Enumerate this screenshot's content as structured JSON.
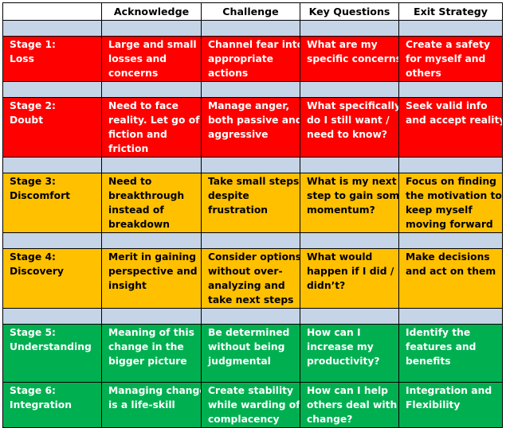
{
  "headers": [
    "",
    "Acknowledge",
    "Challenge",
    "Key Questions",
    "Exit Strategy"
  ],
  "colors": {
    "red": "#fe0000",
    "yellow": "#ffc000",
    "green": "#00b050",
    "spacer": "#c5d4e6"
  },
  "rows": [
    {
      "stage": [
        "Stage 1:",
        "Loss"
      ],
      "acknowledge": [
        "Large and small",
        "losses and",
        "concerns"
      ],
      "challenge": [
        "Channel fear into",
        "appropriate",
        "actions"
      ],
      "key_questions": [
        "What are my",
        "specific concerns?"
      ],
      "exit_strategy": [
        "Create a safety",
        "for myself and",
        "others"
      ]
    },
    {
      "stage": [
        "Stage 2:",
        "Doubt"
      ],
      "acknowledge": [
        "Need to face",
        "reality. Let go of",
        "fiction and",
        "friction"
      ],
      "challenge": [
        "Manage anger,",
        "both passive and",
        "aggressive"
      ],
      "key_questions": [
        "What specifically",
        "do I still want /",
        "need to know?"
      ],
      "exit_strategy": [
        "Seek valid info",
        "and accept reality"
      ]
    },
    {
      "stage": [
        "Stage 3:",
        "Discomfort"
      ],
      "acknowledge": [
        "Need to",
        "breakthrough",
        "instead of",
        "breakdown"
      ],
      "challenge": [
        "Take small steps",
        "despite",
        "frustration"
      ],
      "key_questions": [
        "What is my next",
        "step to gain some",
        "momentum?"
      ],
      "exit_strategy": [
        "Focus on finding",
        "the motivation to",
        "keep myself",
        "moving forward"
      ]
    },
    {
      "stage": [
        "Stage 4:",
        "Discovery"
      ],
      "acknowledge": [
        "Merit in gaining",
        "perspective and",
        "insight"
      ],
      "challenge": [
        "Consider options",
        "without over-",
        "analyzing and",
        "take next steps"
      ],
      "key_questions": [
        "What would",
        "happen if I did /",
        "didn’t?"
      ],
      "exit_strategy": [
        "Make decisions",
        "and act on them"
      ]
    },
    {
      "stage": [
        "Stage 5:",
        "Understanding"
      ],
      "acknowledge": [
        "Meaning of this",
        "change in the",
        "bigger picture"
      ],
      "challenge": [
        "Be determined",
        "without being",
        "judgmental"
      ],
      "key_questions": [
        "How can I",
        "increase my",
        "productivity?"
      ],
      "exit_strategy": [
        "Identify the",
        "features and",
        "benefits"
      ]
    },
    {
      "stage": [
        "Stage 6:",
        "Integration"
      ],
      "acknowledge": [
        "Managing change",
        "is a life-skill"
      ],
      "challenge": [
        "Create stability",
        "while warding off",
        "complacency"
      ],
      "key_questions": [
        "How can I help",
        "others deal with",
        "change?"
      ],
      "exit_strategy": [
        "Integration and",
        "Flexibility"
      ]
    }
  ]
}
